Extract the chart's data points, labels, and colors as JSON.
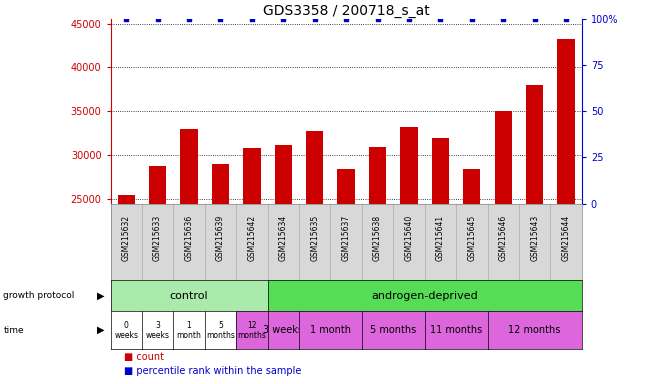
{
  "title": "GDS3358 / 200718_s_at",
  "samples": [
    "GSM215632",
    "GSM215633",
    "GSM215636",
    "GSM215639",
    "GSM215642",
    "GSM215634",
    "GSM215635",
    "GSM215637",
    "GSM215638",
    "GSM215640",
    "GSM215641",
    "GSM215645",
    "GSM215646",
    "GSM215643",
    "GSM215644"
  ],
  "counts": [
    25500,
    28800,
    33000,
    29000,
    30800,
    31200,
    32800,
    28400,
    30900,
    33200,
    32000,
    28400,
    35000,
    38000,
    43200
  ],
  "percentile_ranks": [
    100,
    100,
    100,
    100,
    100,
    100,
    100,
    100,
    100,
    100,
    100,
    100,
    100,
    100,
    100
  ],
  "bar_color": "#cc0000",
  "dot_color": "#0000cc",
  "ylim_left": [
    24500,
    45500
  ],
  "ylim_right": [
    0,
    100
  ],
  "yticks_left": [
    25000,
    30000,
    35000,
    40000,
    45000
  ],
  "yticks_right": [
    0,
    25,
    50,
    75,
    100
  ],
  "background_color": "#ffffff",
  "plot_bg_color": "#ffffff",
  "xticklabel_bg_color": "#d8d8d8",
  "control_color": "#aaeaaa",
  "androgen_color": "#55dd55",
  "time_white_color": "#ffffff",
  "time_pink_color": "#dd66dd",
  "control_label": "control",
  "androgen_label": "androgen-deprived",
  "time_control_labels": [
    "0\nweeks",
    "3\nweeks",
    "1\nmonth",
    "5\nmonths",
    "12\nmonths"
  ],
  "time_androgen_labels": [
    "3 weeks",
    "1 month",
    "5 months",
    "11 months",
    "12 months"
  ],
  "time_and_groups": [
    1,
    2,
    2,
    2,
    3
  ],
  "growth_protocol_label": "growth protocol",
  "time_label": "time",
  "legend_count": "count",
  "legend_percentile": "percentile rank within the sample",
  "bar_width": 0.55,
  "dot_size": 6,
  "tick_label_fontsize": 7,
  "title_fontsize": 10,
  "n_control": 5,
  "n_androgen": 10,
  "n_total": 15
}
